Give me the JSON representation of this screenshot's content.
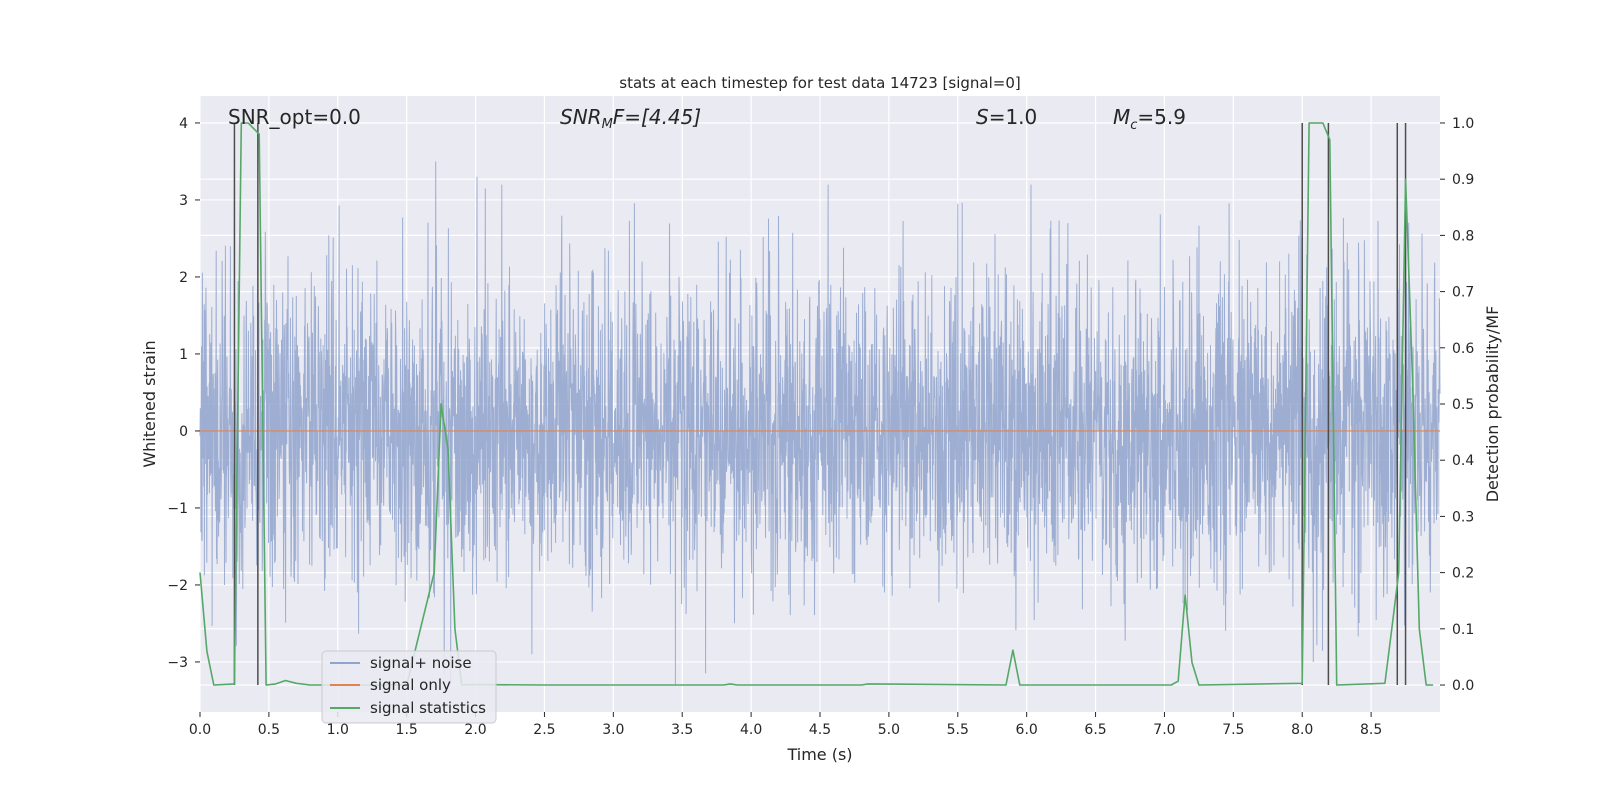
{
  "chart_data": {
    "type": "line",
    "title": "stats at each timestep for test data 14723 [signal=0]",
    "xlabel": "Time (s)",
    "ylabel_left": "Whitened strain",
    "ylabel_right": "Detection probability/MF",
    "xlim": [
      0,
      9
    ],
    "ylim_left": [
      -3.65,
      4.35
    ],
    "ylim_right": [
      -0.048,
      1.048
    ],
    "x_ticks": [
      0.0,
      0.5,
      1.0,
      1.5,
      2.0,
      2.5,
      3.0,
      3.5,
      4.0,
      4.5,
      5.0,
      5.5,
      6.0,
      6.5,
      7.0,
      7.5,
      8.0,
      8.5
    ],
    "x_tick_labels": [
      "0.0",
      "0.5",
      "1.0",
      "1.5",
      "2.0",
      "2.5",
      "3.0",
      "3.5",
      "4.0",
      "4.5",
      "5.0",
      "5.5",
      "6.0",
      "6.5",
      "7.0",
      "7.5",
      "8.0",
      "8.5"
    ],
    "y_left_ticks": [
      -3,
      -2,
      -1,
      0,
      1,
      2,
      3,
      4
    ],
    "y_left_tick_labels": [
      "−3",
      "−2",
      "−1",
      "0",
      "1",
      "2",
      "3",
      "4"
    ],
    "y_right_ticks": [
      0.0,
      0.1,
      0.2,
      0.3,
      0.4,
      0.5,
      0.6,
      0.7,
      0.8,
      0.9,
      1.0
    ],
    "y_right_tick_labels": [
      "0.0",
      "0.1",
      "0.2",
      "0.3",
      "0.4",
      "0.5",
      "0.6",
      "0.7",
      "0.8",
      "0.9",
      "1.0"
    ],
    "annotations": {
      "snr_opt": "SNR_opt=0.0",
      "snr_mf_base": "SNR",
      "snr_mf_sub": "M",
      "snr_mf_rest": "F=[4.45]",
      "s_italic": "S",
      "s_rest": "=1.0",
      "mc_base": "M",
      "mc_sub": "c",
      "mc_rest": "=5.9"
    },
    "legend": {
      "position": "lower-left",
      "entries": [
        "signal+ noise",
        "signal only",
        "signal statistics"
      ]
    },
    "series": [
      {
        "name": "signal+ noise",
        "axis": "left",
        "color": "#8fa3cc",
        "description": "whitened noise, approx. gaussian, peaks up to about 3.5",
        "peaks": [
          [
            0.22,
            2.4
          ],
          [
            1.71,
            3.5
          ],
          [
            2.01,
            3.3
          ],
          [
            2.07,
            3.15
          ],
          [
            4.56,
            3.2
          ],
          [
            5.5,
            2.95
          ],
          [
            6.3,
            2.7
          ],
          [
            3.45,
            -3.3
          ],
          [
            1.82,
            -3.3
          ],
          [
            2.41,
            -2.9
          ],
          [
            8.08,
            -3.0
          ],
          [
            8.19,
            -3.2
          ]
        ]
      },
      {
        "name": "signal only",
        "axis": "left",
        "color": "#dd8452",
        "values_constant": 0.0
      },
      {
        "name": "signal statistics",
        "axis": "right",
        "color": "#55a868",
        "x": [
          0.0,
          0.05,
          0.1,
          0.25,
          0.3,
          0.35,
          0.43,
          0.48,
          0.55,
          0.62,
          0.7,
          0.8,
          1.5,
          1.7,
          1.75,
          1.8,
          1.85,
          1.9,
          1.95,
          2.5,
          3.8,
          3.85,
          3.9,
          4.8,
          4.85,
          5.85,
          5.9,
          5.95,
          7.05,
          7.1,
          7.15,
          7.2,
          7.25,
          8.0,
          8.05,
          8.1,
          8.15,
          8.2,
          8.25,
          8.6,
          8.65,
          8.7,
          8.75,
          8.8,
          8.85,
          8.9,
          8.95
        ],
        "y": [
          0.2,
          0.06,
          0.0,
          0.002,
          1.0,
          1.0,
          0.98,
          0.0,
          0.002,
          0.008,
          0.003,
          0.0,
          0.0,
          0.2,
          0.5,
          0.42,
          0.1,
          0.0,
          0.001,
          0.0,
          0.0,
          0.002,
          0.0,
          0.0,
          0.002,
          0.0,
          0.062,
          0.0,
          0.0,
          0.007,
          0.16,
          0.04,
          0.0,
          0.003,
          1.0,
          1.0,
          1.0,
          0.97,
          0.0,
          0.003,
          0.1,
          0.2,
          0.9,
          0.55,
          0.1,
          0.0,
          0.0
        ]
      }
    ],
    "vertical_lines": {
      "axis": "right",
      "color": "#4d4d4d",
      "x": [
        0.25,
        0.42,
        8.0,
        8.19,
        8.69,
        8.75
      ],
      "ymin": 0.0,
      "ymax": 1.0
    },
    "colors": {
      "axes_background": "#eaeaf2",
      "grid": "#ffffff",
      "noise": "#8fa3cc",
      "signal_only": "#dd8452",
      "statistics": "#55a868",
      "vlines": "#4d4d4d",
      "text": "#262626"
    }
  }
}
